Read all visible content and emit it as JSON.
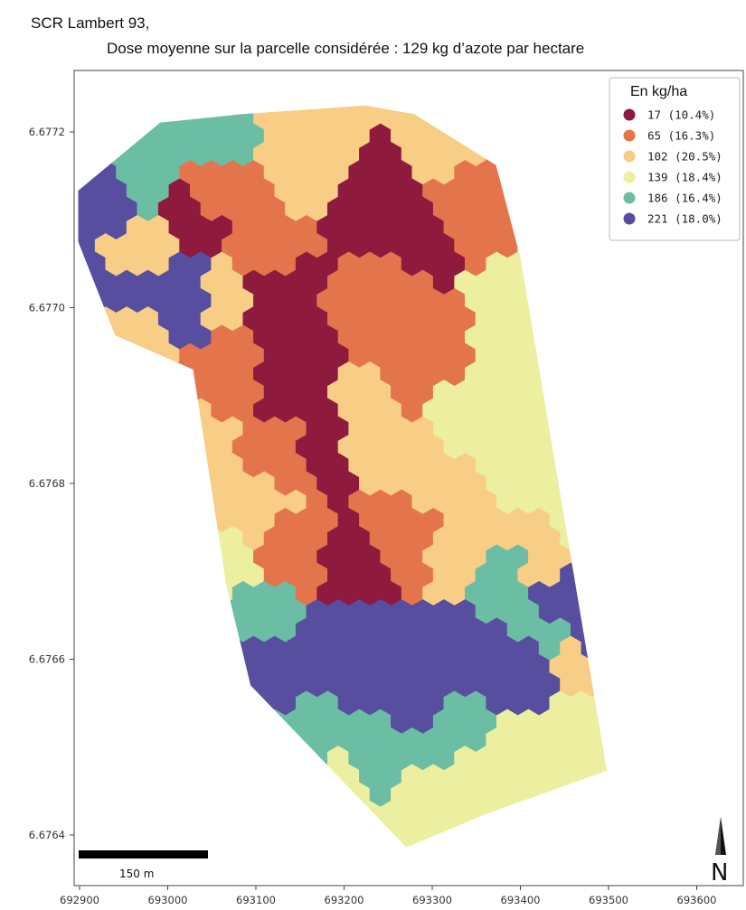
{
  "header": {
    "crs_label": "SCR Lambert 93,",
    "subtitle": "Dose moyenne sur la parcelle considérée : 129 kg d’azote par hectare"
  },
  "axes": {
    "x_ticks": [
      "692900",
      "693000",
      "693100",
      "693200",
      "693300",
      "693400",
      "693500",
      "693600"
    ],
    "y_ticks": [
      "6.6772",
      "6.6770",
      "6.6768",
      "6.6766",
      "6.6764"
    ]
  },
  "legend": {
    "title": "En kg/ha",
    "entries": [
      {
        "label": "17 (10.4%)",
        "color": "#8e1a3e"
      },
      {
        "label": "65 (16.3%)",
        "color": "#e4744b"
      },
      {
        "label": "102 (20.5%)",
        "color": "#f8cd85"
      },
      {
        "label": "139 (18.4%)",
        "color": "#eceea0"
      },
      {
        "label": "186 (16.4%)",
        "color": "#6bbea3"
      },
      {
        "label": "221 (18.0%)",
        "color": "#574ea0"
      }
    ]
  },
  "scalebar": {
    "label": "150 m"
  },
  "north_arrow": {
    "label": "N"
  },
  "map_data": {
    "x_range": [
      692900,
      693660
    ],
    "y_range": [
      6.67633,
      6.67727
    ],
    "field_boundary": [
      [
        692900,
        6.67714
      ],
      [
        693000,
        6.67722
      ],
      [
        693100,
        6.67723
      ],
      [
        693250,
        6.67724
      ],
      [
        693310,
        6.67723
      ],
      [
        693410,
        6.67717
      ],
      [
        693440,
        6.67706
      ],
      [
        693545,
        6.67646
      ],
      [
        693400,
        6.67641
      ],
      [
        693300,
        6.67637
      ],
      [
        693110,
        6.67656
      ],
      [
        693080,
        6.67668
      ],
      [
        693040,
        6.67693
      ],
      [
        692945,
        6.67697
      ],
      [
        692900,
        6.67708
      ]
    ]
  }
}
